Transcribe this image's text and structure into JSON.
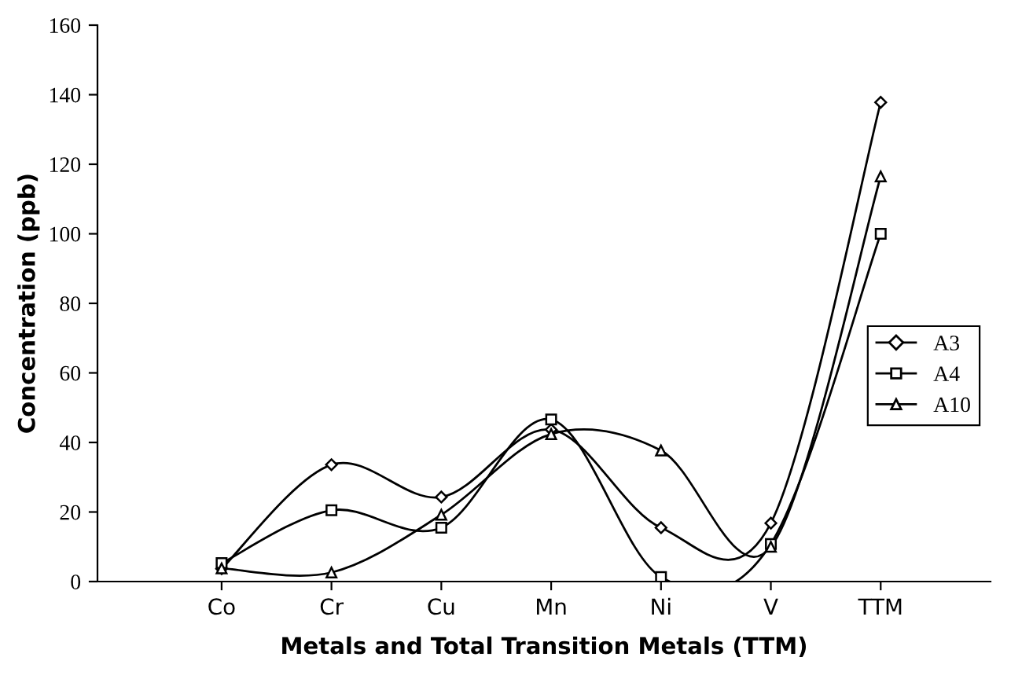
{
  "chart_data": {
    "type": "line",
    "xlabel": "Metals and Total Transition Metals (TTM)",
    "ylabel": "Concentration (ppb)",
    "categories": [
      "Co",
      "Cr",
      "Cu",
      "Mn",
      "Ni",
      "V",
      "TTM"
    ],
    "series": [
      {
        "name": "A3",
        "color": "#000000",
        "marker": "diamond",
        "values": [
          3.7,
          33.6,
          24.3,
          43.7,
          15.5,
          16.8,
          137.8
        ]
      },
      {
        "name": "A4",
        "color": "#000000",
        "marker": "square",
        "values": [
          5.3,
          20.5,
          15.5,
          46.6,
          1.3,
          10.8,
          100
        ]
      },
      {
        "name": "A10",
        "color": "#000000",
        "marker": "triangle",
        "values": [
          3.8,
          2.6,
          19.2,
          42.4,
          37.7,
          10,
          116.5
        ]
      }
    ],
    "ylim": [
      0,
      160
    ],
    "yticks": [
      0,
      20,
      40,
      60,
      80,
      100,
      120,
      140,
      160
    ],
    "grid": false,
    "legend": "right",
    "line_style": "solid"
  }
}
